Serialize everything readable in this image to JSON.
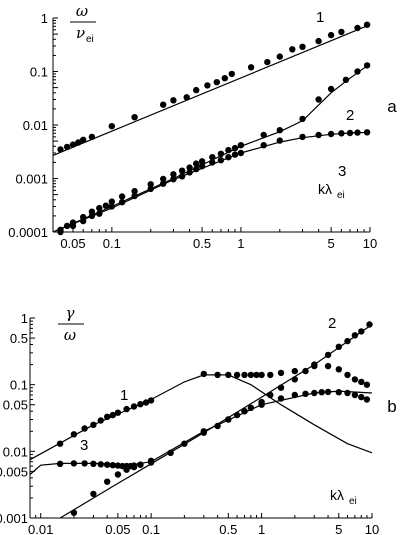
{
  "chart_data": [
    {
      "type": "scatter",
      "panel_label": "a",
      "xscale": "log",
      "yscale": "log",
      "xlim": [
        0.035,
        10
      ],
      "ylim": [
        0.0001,
        1
      ],
      "x_ticks": [
        0.05,
        0.1,
        0.5,
        1,
        5,
        10
      ],
      "x_tick_labels": [
        "0.05",
        "0.1",
        "0.5",
        "1",
        "5",
        "10"
      ],
      "y_ticks": [
        0.0001,
        0.001,
        0.01,
        0.1,
        1
      ],
      "y_tick_labels": [
        "0.0001",
        "0.001",
        "0.01",
        "0.1",
        "1"
      ],
      "ylabel_num": "ω",
      "ylabel_den": "ν",
      "ylabel_den_sub": "ei",
      "xlabel_main": "kλ",
      "xlabel_sub": "ei",
      "curve_labels": [
        "1",
        "2",
        "3"
      ],
      "series": [
        {
          "label": "1",
          "x": [
            0.04,
            0.045,
            0.05,
            0.055,
            0.06,
            0.07,
            0.1,
            0.15,
            0.25,
            0.3,
            0.38,
            0.45,
            0.55,
            0.65,
            0.75,
            0.85,
            1.2,
            1.6,
            2.0,
            2.5,
            3.0,
            4.0,
            5.0,
            6.0,
            8.0,
            9.5
          ],
          "y": [
            0.0035,
            0.0039,
            0.0043,
            0.0047,
            0.0053,
            0.006,
            0.0095,
            0.014,
            0.024,
            0.029,
            0.033,
            0.045,
            0.055,
            0.063,
            0.075,
            0.09,
            0.12,
            0.15,
            0.19,
            0.26,
            0.29,
            0.37,
            0.48,
            0.55,
            0.65,
            0.75
          ],
          "fit_x": [
            0.035,
            10
          ],
          "fit_y": [
            0.0027,
            0.75
          ]
        },
        {
          "label": "2",
          "x": [
            0.04,
            0.045,
            0.05,
            0.06,
            0.07,
            0.08,
            0.09,
            0.1,
            0.12,
            0.15,
            0.2,
            0.25,
            0.3,
            0.35,
            0.4,
            0.45,
            0.5,
            0.6,
            0.7,
            0.8,
            0.9,
            1.0,
            1.5,
            2.0,
            3.0,
            4.0,
            5.0,
            6.5,
            8.0,
            9.5
          ],
          "y": [
            0.00011,
            0.00013,
            0.00015,
            0.00019,
            0.00024,
            0.00028,
            0.00031,
            0.00037,
            0.00046,
            0.00058,
            0.00078,
            0.00098,
            0.0012,
            0.0014,
            0.0016,
            0.0019,
            0.0021,
            0.0025,
            0.0029,
            0.0034,
            0.0037,
            0.0042,
            0.0065,
            0.008,
            0.013,
            0.03,
            0.047,
            0.07,
            0.1,
            0.13
          ],
          "fit_x": [
            0.035,
            0.1,
            0.3,
            1,
            2,
            3,
            5,
            7,
            10
          ],
          "fit_y": [
            0.0001,
            0.0003,
            0.001,
            0.004,
            0.0075,
            0.012,
            0.04,
            0.075,
            0.14
          ]
        },
        {
          "label": "3",
          "x": [
            0.04,
            0.05,
            0.06,
            0.07,
            0.08,
            0.1,
            0.12,
            0.15,
            0.2,
            0.25,
            0.3,
            0.35,
            0.4,
            0.45,
            0.5,
            0.6,
            0.7,
            0.8,
            0.9,
            1.0,
            1.5,
            2.0,
            3.0,
            4.0,
            5.0,
            6.0,
            7.0,
            8.0,
            9.5
          ],
          "y": [
            0.0001,
            0.00013,
            0.00016,
            0.0002,
            0.00022,
            0.0003,
            0.00036,
            0.00047,
            0.00064,
            0.0008,
            0.00097,
            0.0011,
            0.0013,
            0.0015,
            0.0017,
            0.002,
            0.0022,
            0.0025,
            0.0028,
            0.003,
            0.0042,
            0.0051,
            0.006,
            0.0065,
            0.0068,
            0.007,
            0.0071,
            0.0072,
            0.0073
          ],
          "fit_x": [
            0.035,
            0.1,
            0.3,
            1,
            2,
            3,
            5,
            7,
            10
          ],
          "fit_y": [
            0.0001,
            0.00028,
            0.00095,
            0.003,
            0.0048,
            0.0058,
            0.0067,
            0.0071,
            0.0073
          ]
        }
      ]
    },
    {
      "type": "scatter",
      "panel_label": "b",
      "xscale": "log",
      "yscale": "log",
      "xlim": [
        0.008,
        10
      ],
      "ylim": [
        0.001,
        1
      ],
      "x_ticks": [
        0.01,
        0.05,
        0.1,
        0.5,
        1,
        5,
        10
      ],
      "x_tick_labels": [
        "0.01",
        "0.05",
        "0.1",
        "0.5",
        "1",
        "5",
        "10"
      ],
      "y_ticks": [
        0.001,
        0.005,
        0.01,
        0.05,
        0.1,
        0.5,
        1
      ],
      "y_tick_labels": [
        "0.001",
        "0.005",
        "0.01",
        "0.05",
        "0.1",
        "0.5",
        "1"
      ],
      "ylabel_num": "γ",
      "ylabel_den": "ω",
      "xlabel_main": "kλ",
      "xlabel_sub": "ei",
      "curve_labels": [
        "1",
        "2",
        "3"
      ],
      "series": [
        {
          "label": "1",
          "x": [
            0.015,
            0.02,
            0.025,
            0.03,
            0.035,
            0.04,
            0.045,
            0.05,
            0.06,
            0.07,
            0.08,
            0.09,
            0.1,
            0.3,
            0.4,
            0.5,
            0.6,
            0.7,
            0.8,
            0.9,
            1.0,
            1.2,
            1.5,
            2.0,
            3.0,
            4.0,
            5.0,
            6.0,
            7.0,
            8.0,
            9.0
          ],
          "y": [
            0.013,
            0.018,
            0.022,
            0.025,
            0.029,
            0.033,
            0.035,
            0.038,
            0.043,
            0.047,
            0.051,
            0.054,
            0.058,
            0.145,
            0.14,
            0.14,
            0.14,
            0.14,
            0.14,
            0.14,
            0.14,
            0.14,
            0.15,
            0.16,
            0.19,
            0.19,
            0.17,
            0.14,
            0.12,
            0.11,
            0.1
          ],
          "fit_x": [
            0.008,
            0.03,
            0.1,
            0.2,
            0.3,
            0.5,
            0.8,
            1.5,
            3,
            6,
            10
          ],
          "fit_y": [
            0.0075,
            0.025,
            0.06,
            0.11,
            0.14,
            0.14,
            0.1,
            0.05,
            0.025,
            0.013,
            0.0095
          ]
        },
        {
          "label": "2",
          "x": [
            0.02,
            0.03,
            0.04,
            0.05,
            0.06,
            0.07,
            0.08,
            0.1,
            0.15,
            0.2,
            0.3,
            0.4,
            0.5,
            0.6,
            0.7,
            0.8,
            1.0,
            1.2,
            1.5,
            2.0,
            2.5,
            3.0,
            4.0,
            5.0,
            6.0,
            7.0,
            8.0,
            9.5
          ],
          "y": [
            0.0012,
            0.0023,
            0.0035,
            0.0045,
            0.0053,
            0.0058,
            0.0063,
            0.0072,
            0.0095,
            0.013,
            0.019,
            0.024,
            0.03,
            0.035,
            0.04,
            0.045,
            0.055,
            0.07,
            0.09,
            0.12,
            0.16,
            0.2,
            0.28,
            0.37,
            0.45,
            0.55,
            0.63,
            0.8
          ],
          "fit_x": [
            0.015,
            0.05,
            0.1,
            0.3,
            1,
            3,
            10
          ],
          "fit_y": [
            0.001,
            0.0033,
            0.0065,
            0.019,
            0.065,
            0.2,
            0.8
          ]
        },
        {
          "label": "3",
          "x": [
            0.015,
            0.02,
            0.025,
            0.03,
            0.035,
            0.04,
            0.045,
            0.05,
            0.055,
            0.06,
            0.065,
            0.07,
            0.08,
            0.1,
            0.3,
            0.5,
            0.7,
            1.0,
            1.5,
            2.0,
            2.5,
            3.0,
            3.5,
            4.0,
            5.0,
            6.0,
            7.0,
            8.0,
            9.0
          ],
          "y": [
            0.0065,
            0.0066,
            0.0066,
            0.0065,
            0.0064,
            0.0063,
            0.0062,
            0.0061,
            0.006,
            0.006,
            0.006,
            0.0061,
            0.0063,
            0.0068,
            0.02,
            0.03,
            0.04,
            0.05,
            0.062,
            0.07,
            0.073,
            0.075,
            0.077,
            0.078,
            0.077,
            0.075,
            0.07,
            0.065,
            0.06
          ],
          "fit_x": [
            0.008,
            0.01,
            0.015,
            0.03,
            0.05,
            0.07,
            0.1,
            0.3,
            1,
            3,
            5,
            10
          ],
          "fit_y": [
            0.0045,
            0.0062,
            0.0066,
            0.0066,
            0.0064,
            0.0064,
            0.007,
            0.02,
            0.05,
            0.075,
            0.08,
            0.075
          ]
        }
      ]
    }
  ]
}
